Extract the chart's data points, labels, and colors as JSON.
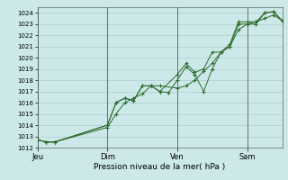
{
  "title": "",
  "xlabel": "Pression niveau de la mer( hPa )",
  "ylabel": "",
  "background_color": "#cce8e8",
  "grid_color": "#b0cccc",
  "line_color": "#2d6b2d",
  "ylim": [
    1012,
    1024.5
  ],
  "yticks": [
    1012,
    1013,
    1014,
    1015,
    1016,
    1017,
    1018,
    1019,
    1020,
    1021,
    1022,
    1023,
    1024
  ],
  "day_labels": [
    "Jeu",
    "Dim",
    "Ven",
    "Sam"
  ],
  "day_positions": [
    0.0,
    0.286,
    0.571,
    0.857
  ],
  "xlim": [
    0.0,
    1.0
  ],
  "series1_x": [
    0.0,
    0.036,
    0.071,
    0.286,
    0.321,
    0.357,
    0.393,
    0.429,
    0.464,
    0.5,
    0.536,
    0.571,
    0.607,
    0.643,
    0.679,
    0.714,
    0.75,
    0.786,
    0.821,
    0.857,
    0.893,
    0.929,
    0.964,
    1.0
  ],
  "series1_y": [
    1012.7,
    1012.5,
    1012.5,
    1014.0,
    1016.0,
    1016.4,
    1016.2,
    1017.5,
    1017.5,
    1017.0,
    1016.9,
    1018.0,
    1019.2,
    1018.5,
    1017.0,
    1019.0,
    1020.5,
    1021.0,
    1023.0,
    1023.0,
    1023.0,
    1024.0,
    1024.1,
    1023.3
  ],
  "series2_x": [
    0.0,
    0.036,
    0.071,
    0.286,
    0.321,
    0.357,
    0.393,
    0.429,
    0.464,
    0.5,
    0.571,
    0.607,
    0.643,
    0.679,
    0.714,
    0.75,
    0.786,
    0.821,
    0.857,
    0.893,
    0.929,
    0.964,
    1.0
  ],
  "series2_y": [
    1012.7,
    1012.5,
    1012.5,
    1014.0,
    1016.0,
    1016.4,
    1016.2,
    1017.5,
    1017.5,
    1017.0,
    1018.5,
    1019.5,
    1018.7,
    1019.0,
    1020.5,
    1020.5,
    1021.2,
    1023.2,
    1023.2,
    1023.2,
    1024.0,
    1024.1,
    1023.3
  ],
  "series3_x": [
    0.0,
    0.036,
    0.071,
    0.286,
    0.321,
    0.357,
    0.393,
    0.429,
    0.464,
    0.5,
    0.571,
    0.607,
    0.643,
    0.679,
    0.714,
    0.75,
    0.786,
    0.821,
    0.857,
    0.893,
    0.929,
    0.964,
    1.0
  ],
  "series3_y": [
    1012.7,
    1012.5,
    1012.5,
    1013.8,
    1015.0,
    1016.0,
    1016.4,
    1016.8,
    1017.5,
    1017.5,
    1017.3,
    1017.5,
    1018.0,
    1018.8,
    1019.5,
    1020.5,
    1021.0,
    1022.5,
    1023.0,
    1023.2,
    1023.5,
    1023.8,
    1023.3
  ],
  "fig_width": 3.2,
  "fig_height": 2.0,
  "dpi": 100
}
